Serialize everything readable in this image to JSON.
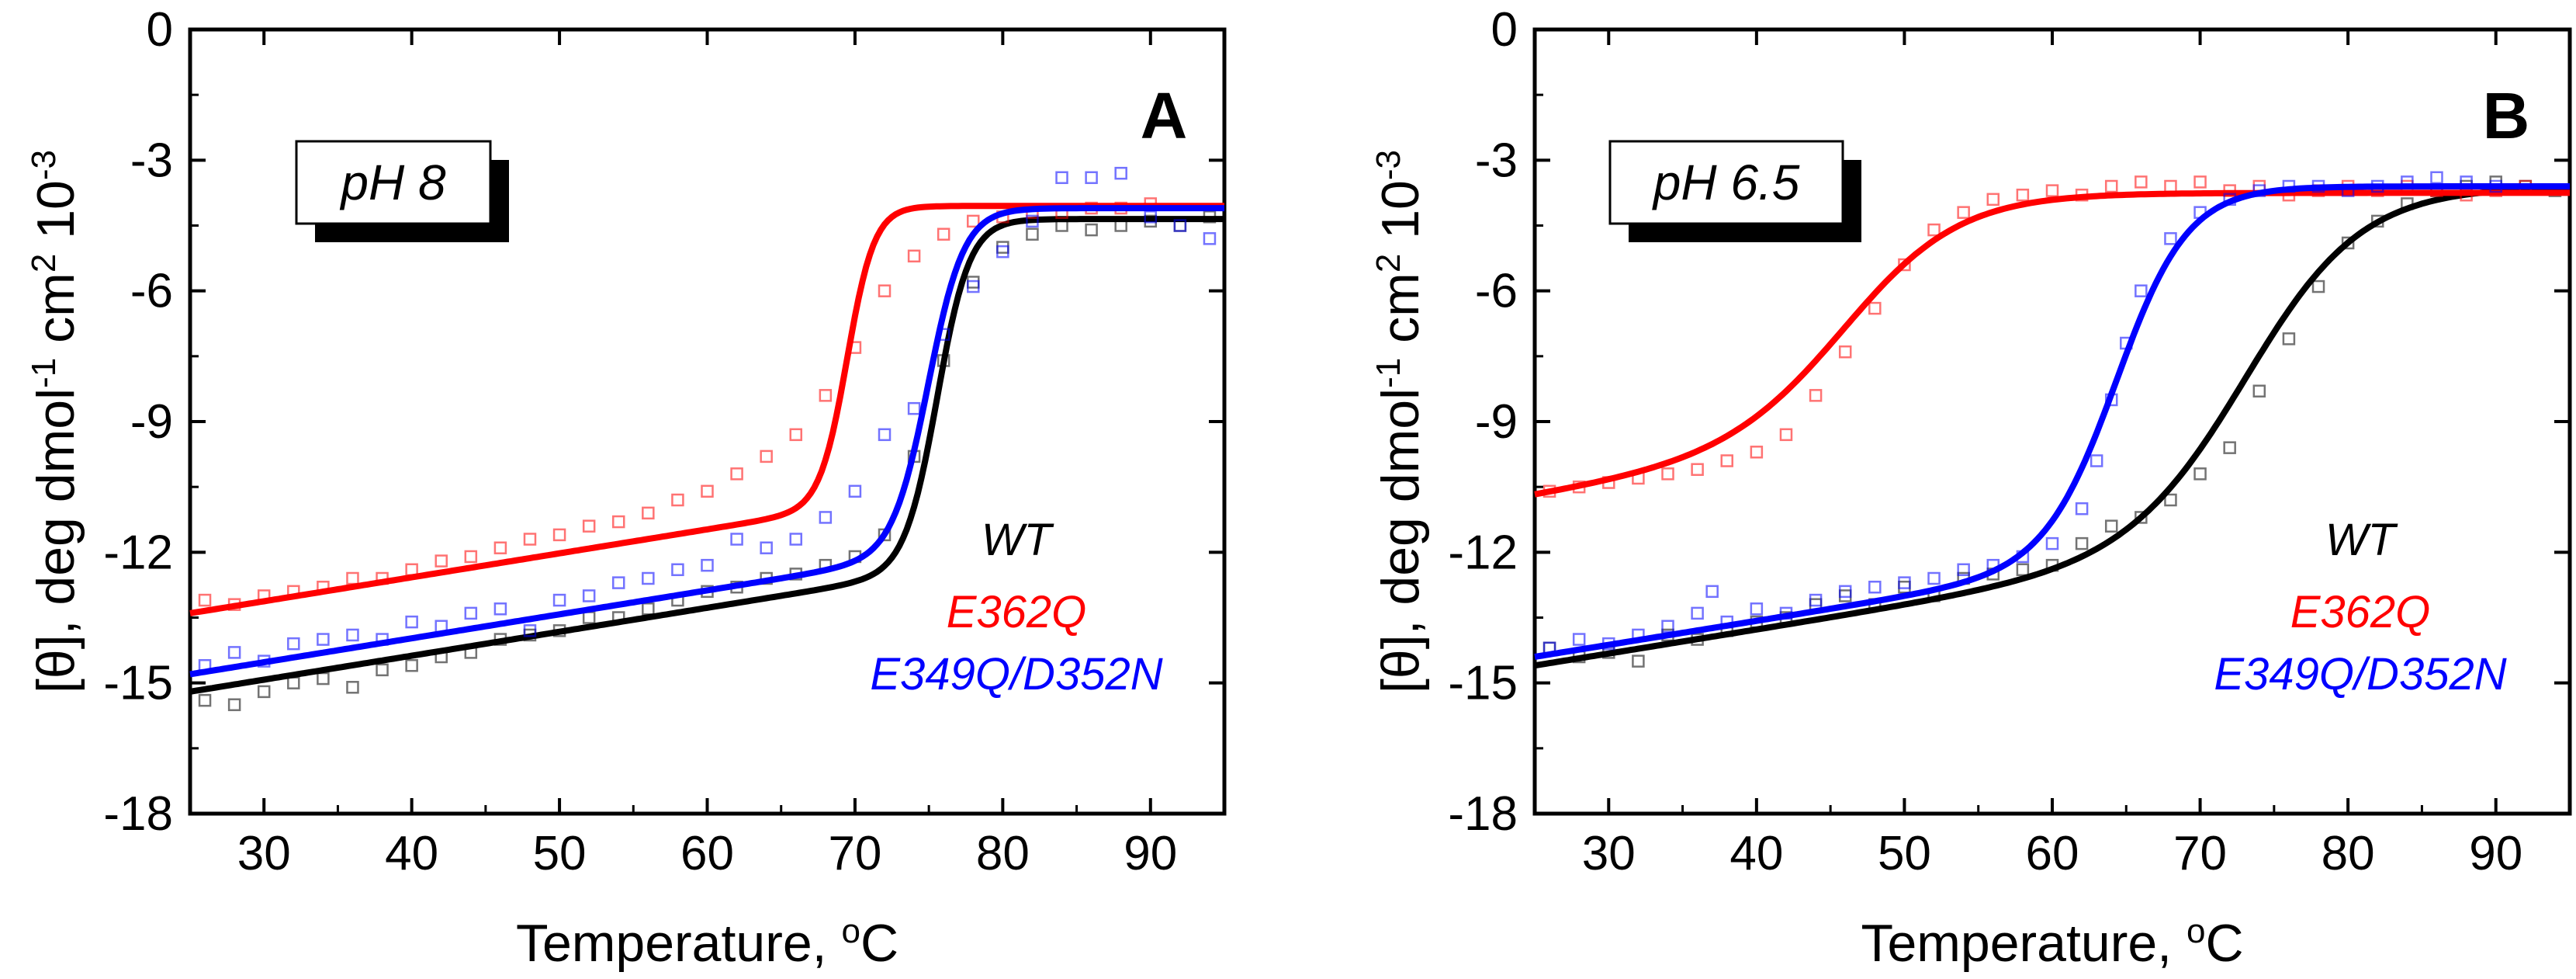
{
  "chart_data": [
    {
      "type": "scatter",
      "panel_label": "A",
      "condition_label": "pH 8",
      "xlabel": "Temperature, ",
      "xlabel_unit": "C",
      "xlabel_superscript": "o",
      "ylabel_parts": [
        "[θ], deg dmol",
        "-1",
        " cm",
        "2",
        " 10",
        "-3"
      ],
      "xlim": [
        25,
        95
      ],
      "ylim": [
        -18,
        0
      ],
      "xticks": [
        30,
        40,
        50,
        60,
        70,
        80,
        90
      ],
      "yticks": [
        0,
        -3,
        -6,
        -9,
        -12,
        -15,
        -18
      ],
      "legend_placement": "lower-right",
      "series": [
        {
          "name": "WT",
          "color": "#000000",
          "low": [
            25,
            -15.2
          ],
          "high": [
            95,
            -4.35
          ],
          "tm": 75.6,
          "slope": 0.5,
          "samples": [
            [
              26,
              -15.4
            ],
            [
              28,
              -15.5
            ],
            [
              30,
              -15.2
            ],
            [
              32,
              -15.0
            ],
            [
              34,
              -14.9
            ],
            [
              36,
              -15.1
            ],
            [
              38,
              -14.7
            ],
            [
              40,
              -14.6
            ],
            [
              42,
              -14.4
            ],
            [
              44,
              -14.3
            ],
            [
              46,
              -14.0
            ],
            [
              48,
              -13.9
            ],
            [
              50,
              -13.8
            ],
            [
              52,
              -13.5
            ],
            [
              54,
              -13.5
            ],
            [
              56,
              -13.3
            ],
            [
              58,
              -13.1
            ],
            [
              60,
              -12.9
            ],
            [
              62,
              -12.8
            ],
            [
              64,
              -12.6
            ],
            [
              66,
              -12.5
            ],
            [
              68,
              -12.3
            ],
            [
              70,
              -12.1
            ],
            [
              72,
              -11.6
            ],
            [
              74,
              -9.8
            ],
            [
              76,
              -7.6
            ],
            [
              78,
              -5.8
            ],
            [
              80,
              -5.0
            ],
            [
              82,
              -4.7
            ],
            [
              84,
              -4.5
            ],
            [
              86,
              -4.6
            ],
            [
              88,
              -4.5
            ],
            [
              90,
              -4.4
            ],
            [
              92,
              -4.5
            ],
            [
              94,
              -4.3
            ]
          ]
        },
        {
          "name": "E362Q",
          "color": "#ff0000",
          "low": [
            25,
            -13.4
          ],
          "high": [
            95,
            -4.05
          ],
          "tm": 69.5,
          "slope": 0.42,
          "samples": [
            [
              26,
              -13.1
            ],
            [
              28,
              -13.2
            ],
            [
              30,
              -13.0
            ],
            [
              32,
              -12.9
            ],
            [
              34,
              -12.8
            ],
            [
              36,
              -12.6
            ],
            [
              38,
              -12.6
            ],
            [
              40,
              -12.4
            ],
            [
              42,
              -12.2
            ],
            [
              44,
              -12.1
            ],
            [
              46,
              -11.9
            ],
            [
              48,
              -11.7
            ],
            [
              50,
              -11.6
            ],
            [
              52,
              -11.4
            ],
            [
              54,
              -11.3
            ],
            [
              56,
              -11.1
            ],
            [
              58,
              -10.8
            ],
            [
              60,
              -10.6
            ],
            [
              62,
              -10.2
            ],
            [
              64,
              -9.8
            ],
            [
              66,
              -9.3
            ],
            [
              68,
              -8.4
            ],
            [
              70,
              -7.3
            ],
            [
              72,
              -6.0
            ],
            [
              74,
              -5.2
            ],
            [
              76,
              -4.7
            ],
            [
              78,
              -4.4
            ],
            [
              80,
              -4.3
            ],
            [
              82,
              -4.2
            ],
            [
              84,
              -4.2
            ],
            [
              86,
              -4.1
            ],
            [
              88,
              -4.1
            ],
            [
              90,
              -4.0
            ]
          ]
        },
        {
          "name": "E349Q/D352N",
          "color": "#0000ff",
          "low": [
            25,
            -14.8
          ],
          "high": [
            95,
            -4.1
          ],
          "tm": 75.0,
          "slope": 0.55,
          "samples": [
            [
              26,
              -14.6
            ],
            [
              28,
              -14.3
            ],
            [
              30,
              -14.5
            ],
            [
              32,
              -14.1
            ],
            [
              34,
              -14.0
            ],
            [
              36,
              -13.9
            ],
            [
              38,
              -14.0
            ],
            [
              40,
              -13.6
            ],
            [
              42,
              -13.7
            ],
            [
              44,
              -13.4
            ],
            [
              46,
              -13.3
            ],
            [
              48,
              -13.8
            ],
            [
              50,
              -13.1
            ],
            [
              52,
              -13.0
            ],
            [
              54,
              -12.7
            ],
            [
              56,
              -12.6
            ],
            [
              58,
              -12.4
            ],
            [
              60,
              -12.3
            ],
            [
              62,
              -11.7
            ],
            [
              64,
              -11.9
            ],
            [
              66,
              -11.7
            ],
            [
              68,
              -11.2
            ],
            [
              70,
              -10.6
            ],
            [
              72,
              -9.3
            ],
            [
              74,
              -8.7
            ],
            [
              76,
              -7.0
            ],
            [
              78,
              -5.9
            ],
            [
              80,
              -5.1
            ],
            [
              82,
              -4.4
            ],
            [
              84,
              -3.4
            ],
            [
              86,
              -3.4
            ],
            [
              88,
              -3.3
            ],
            [
              90,
              -4.3
            ],
            [
              92,
              -4.5
            ],
            [
              94,
              -4.8
            ]
          ]
        }
      ]
    },
    {
      "type": "scatter",
      "panel_label": "B",
      "condition_label": "pH 6.5",
      "xlabel": "Temperature, ",
      "xlabel_unit": "C",
      "xlabel_superscript": "o",
      "ylabel_parts": [
        "[θ], deg dmol",
        "-1",
        " cm",
        "2",
        " 10",
        "-3"
      ],
      "xlim": [
        25,
        95
      ],
      "ylim": [
        -18,
        0
      ],
      "xticks": [
        30,
        40,
        50,
        60,
        70,
        80,
        90
      ],
      "yticks": [
        0,
        -3,
        -6,
        -9,
        -12,
        -15,
        -18
      ],
      "legend_placement": "lower-right",
      "series": [
        {
          "name": "WT",
          "color": "#000000",
          "low": [
            25,
            -14.6
          ],
          "high": [
            95,
            -3.6
          ],
          "tm": 73.5,
          "slope": 1.8,
          "samples": [
            [
              26,
              -14.2
            ],
            [
              28,
              -14.4
            ],
            [
              30,
              -14.3
            ],
            [
              32,
              -14.5
            ],
            [
              34,
              -13.9
            ],
            [
              36,
              -14.0
            ],
            [
              38,
              -13.8
            ],
            [
              40,
              -13.6
            ],
            [
              42,
              -13.5
            ],
            [
              44,
              -13.2
            ],
            [
              46,
              -13.0
            ],
            [
              48,
              -13.2
            ],
            [
              50,
              -12.8
            ],
            [
              52,
              -13.0
            ],
            [
              54,
              -12.6
            ],
            [
              56,
              -12.5
            ],
            [
              58,
              -12.4
            ],
            [
              60,
              -12.3
            ],
            [
              62,
              -11.8
            ],
            [
              64,
              -11.4
            ],
            [
              66,
              -11.2
            ],
            [
              68,
              -10.8
            ],
            [
              70,
              -10.2
            ],
            [
              72,
              -9.6
            ],
            [
              74,
              -8.3
            ],
            [
              76,
              -7.1
            ],
            [
              78,
              -5.9
            ],
            [
              80,
              -4.9
            ],
            [
              82,
              -4.4
            ],
            [
              84,
              -4.0
            ],
            [
              86,
              -3.7
            ],
            [
              88,
              -3.6
            ],
            [
              90,
              -3.5
            ],
            [
              92,
              -3.6
            ],
            [
              94,
              -3.7
            ]
          ]
        },
        {
          "name": "E362Q",
          "color": "#ff0000",
          "low": [
            25,
            -10.7
          ],
          "high": [
            95,
            -3.75
          ],
          "tm": 46.5,
          "slope": 1.8,
          "samples": [
            [
              26,
              -10.6
            ],
            [
              28,
              -10.5
            ],
            [
              30,
              -10.4
            ],
            [
              32,
              -10.3
            ],
            [
              34,
              -10.2
            ],
            [
              36,
              -10.1
            ],
            [
              38,
              -9.9
            ],
            [
              40,
              -9.7
            ],
            [
              42,
              -9.3
            ],
            [
              44,
              -8.4
            ],
            [
              46,
              -7.4
            ],
            [
              48,
              -6.4
            ],
            [
              50,
              -5.4
            ],
            [
              52,
              -4.6
            ],
            [
              54,
              -4.2
            ],
            [
              56,
              -3.9
            ],
            [
              58,
              -3.8
            ],
            [
              60,
              -3.7
            ],
            [
              62,
              -3.8
            ],
            [
              64,
              -3.6
            ],
            [
              66,
              -3.5
            ],
            [
              68,
              -3.6
            ],
            [
              70,
              -3.5
            ],
            [
              72,
              -3.7
            ],
            [
              74,
              -3.6
            ],
            [
              76,
              -3.8
            ],
            [
              78,
              -3.7
            ],
            [
              80,
              -3.6
            ],
            [
              82,
              -3.7
            ],
            [
              84,
              -3.6
            ],
            [
              86,
              -3.7
            ],
            [
              88,
              -3.8
            ],
            [
              90,
              -3.7
            ],
            [
              92,
              -3.6
            ]
          ]
        },
        {
          "name": "E349Q/D352N",
          "color": "#0000ff",
          "low": [
            25,
            -14.4
          ],
          "high": [
            95,
            -3.6
          ],
          "tm": 64.5,
          "slope": 1.1,
          "samples": [
            [
              26,
              -14.2
            ],
            [
              28,
              -14.0
            ],
            [
              30,
              -14.1
            ],
            [
              32,
              -13.9
            ],
            [
              34,
              -13.7
            ],
            [
              36,
              -13.4
            ],
            [
              37,
              -12.9
            ],
            [
              38,
              -13.6
            ],
            [
              40,
              -13.3
            ],
            [
              42,
              -13.4
            ],
            [
              44,
              -13.1
            ],
            [
              46,
              -12.9
            ],
            [
              48,
              -12.8
            ],
            [
              50,
              -12.7
            ],
            [
              52,
              -12.6
            ],
            [
              54,
              -12.4
            ],
            [
              56,
              -12.3
            ],
            [
              58,
              -12.1
            ],
            [
              60,
              -11.8
            ],
            [
              62,
              -11.0
            ],
            [
              63,
              -9.9
            ],
            [
              64,
              -8.5
            ],
            [
              65,
              -7.2
            ],
            [
              66,
              -6.0
            ],
            [
              68,
              -4.8
            ],
            [
              70,
              -4.2
            ],
            [
              72,
              -3.9
            ],
            [
              74,
              -3.7
            ],
            [
              76,
              -3.6
            ],
            [
              78,
              -3.6
            ],
            [
              80,
              -3.7
            ],
            [
              82,
              -3.6
            ],
            [
              84,
              -3.5
            ],
            [
              86,
              -3.4
            ],
            [
              88,
              -3.5
            ],
            [
              90,
              -3.6
            ]
          ]
        }
      ]
    }
  ]
}
